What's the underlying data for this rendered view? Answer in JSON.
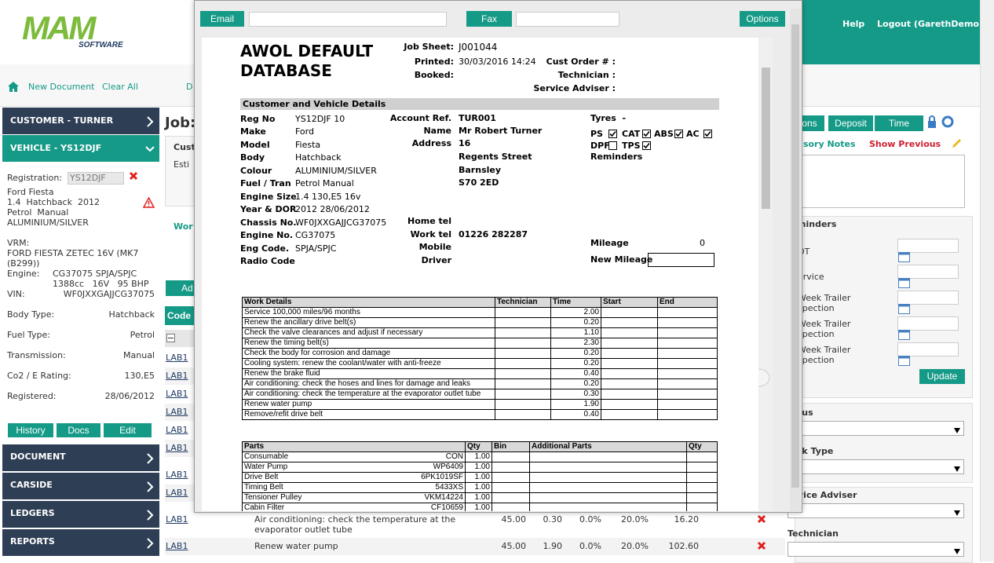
{
  "header": {
    "logo": "MAM",
    "logo_sub": "SOFTWARE",
    "nav": [
      "Help",
      "Logout (GarethDemo)"
    ]
  },
  "toolbar": {
    "links": [
      "New Document",
      "Clear All",
      "D"
    ]
  },
  "sidebar": {
    "customer": "CUSTOMER - TURNER",
    "vehicle": "VEHICLE - YS12DJF",
    "registration": {
      "label": "Registration:",
      "value": "YS12DJF"
    },
    "description": [
      "Ford Fiesta",
      "1.4  Hatchback  2012",
      "Petrol  Manual",
      "ALUMINIUM/SILVER"
    ],
    "vrm": {
      "label": "VRM:",
      "lines": [
        "FORD FIESTA ZETEC 16V (MK7",
        "(B299))"
      ]
    },
    "engine": {
      "label": "Engine:",
      "lines": [
        "CG37075 SPJA/SPJC",
        "1388cc   16V   95 BHP"
      ]
    },
    "vin": {
      "label": "VIN:",
      "value": "WF0JXXGAJJCG37075"
    },
    "details": [
      {
        "label": "Body Type:",
        "value": "Hatchback"
      },
      {
        "label": "Fuel Type:",
        "value": "Petrol"
      },
      {
        "label": "Transmission:",
        "value": "Manual"
      },
      {
        "label": "Co2 / E Rating:",
        "value": "130,E5"
      },
      {
        "label": "Registered:",
        "value": "28/06/2012"
      }
    ],
    "buttons": [
      "History",
      "Docs",
      "Edit"
    ],
    "menu": [
      "DOCUMENT",
      "CARSIDE",
      "LEDGERS",
      "REPORTS"
    ]
  },
  "main": {
    "job": "Job:",
    "fragments": [
      "Cust",
      "Esti",
      "Wor"
    ],
    "add_button": "Ad",
    "code_header": "Code",
    "links": [
      "LAB1",
      "LAB1",
      "LAB1",
      "LAB1",
      "LAB1",
      "LAB1",
      "LAB1",
      "LAB1"
    ],
    "rows": [
      {
        "code": "LAB1",
        "description": "Air conditioning: check the temperature at the evaporator outlet tube",
        "cells": [
          "45.00",
          "0.30",
          "0.0%",
          "20.0%",
          "16.20"
        ]
      },
      {
        "code": "LAB1",
        "description": "Renew water pump",
        "cells": [
          "45.00",
          "1.90",
          "0.0%",
          "20.0%",
          "102.60"
        ]
      }
    ]
  },
  "right_panel": {
    "tabs": [
      "ons",
      "Deposit",
      "Time"
    ],
    "notes_label": "visory Notes",
    "show_previous": "Show Previous",
    "reminders": {
      "title": "minders",
      "items": [
        [
          "OT"
        ],
        [
          "ervice"
        ],
        [
          "Week Trailer",
          "spection"
        ],
        [
          "Week Trailer",
          "spection"
        ],
        [
          "Week Trailer",
          "spection"
        ]
      ]
    },
    "update": "Update",
    "fields": [
      "tus",
      "rk Type",
      "vice Adviser",
      "Technician"
    ]
  },
  "popup": {
    "buttons": [
      "Email",
      "Fax",
      "Options"
    ],
    "document": {
      "title": [
        "AWOL DEFAULT",
        "DATABASE"
      ],
      "job_sheet": {
        "label": "Job Sheet:",
        "value": "J001044"
      },
      "printed": {
        "label": "Printed:",
        "value": "30/03/2016 14:24"
      },
      "booked": {
        "label": "Booked:"
      },
      "right_labels": [
        "Cust Order # :",
        "Technician :",
        "Service Adviser :"
      ],
      "section": "Customer and Vehicle Details",
      "vehicle": [
        {
          "label": "Reg No",
          "value": "YS12DJF 10"
        },
        {
          "label": "Make",
          "value": "Ford"
        },
        {
          "label": "Model",
          "value": "Fiesta"
        },
        {
          "label": "Body",
          "value": "Hatchback"
        },
        {
          "label": "Colour",
          "value": "ALUMINIUM/SILVER"
        },
        {
          "label": "Fuel / Tran",
          "value": "Petrol Manual"
        },
        {
          "label": "Engine Size",
          "value": "1.4 130,E5 16v"
        },
        {
          "label": "Year & DOR",
          "value": "2012 28/06/2012"
        },
        {
          "label": "Chassis No.",
          "value": "WF0JXXGAJJCG37075"
        },
        {
          "label": "Engine No.",
          "value": "CG37075"
        },
        {
          "label": "Eng Code.",
          "value": "SPJA/SPJC"
        },
        {
          "label": "Radio Code"
        }
      ],
      "customer": [
        {
          "label": "Account Ref.",
          "value": "TUR001"
        },
        {
          "label": "Name",
          "value": "Mr Robert Turner"
        },
        {
          "label": "Address",
          "value": "16"
        }
      ],
      "address_lines": [
        "Regents Street",
        "Barnsley",
        "S70 2ED"
      ],
      "contact": [
        {
          "label": "Home tel"
        },
        {
          "label": "Work tel",
          "value": "01226 282287"
        },
        {
          "label": "Mobile"
        },
        {
          "label": "Driver"
        }
      ],
      "tyres": "Tyres  -",
      "checks": [
        {
          "label": "PS",
          "checked": true
        },
        {
          "label": "CAT",
          "checked": true
        },
        {
          "label": "ABS",
          "checked": true
        },
        {
          "label": "AC",
          "checked": true
        },
        {
          "label": "DPF",
          "checked": false
        },
        {
          "label": "TPS",
          "checked": true
        }
      ],
      "reminders": "Reminders",
      "mileage": {
        "label": "Mileage",
        "value": "0"
      },
      "new_mileage": "New Mileage",
      "work": {
        "headers": [
          "Work Details",
          "Technician",
          "Time",
          "Start",
          "End"
        ],
        "rows": [
          [
            "Service 100,000 miles/96 months",
            "2.00"
          ],
          [
            "Renew the ancillary drive belt(s)",
            "0.20"
          ],
          [
            "Check the valve clearances and adjust if necessary",
            "1.10"
          ],
          [
            "Renew the timing belt(s)",
            "2.30"
          ],
          [
            "Check the body for corrosion and damage",
            "0.20"
          ],
          [
            "Cooling system: renew the coolant/water with anti-freeze",
            "0.20"
          ],
          [
            "Renew the brake fluid",
            "0.40"
          ],
          [
            "Air conditioning: check the hoses and lines for damage and leaks",
            "0.20"
          ],
          [
            "Air conditioning: check the temperature at the evaporator outlet tube",
            "0.30"
          ],
          [
            "Renew water pump",
            "1.90"
          ],
          [
            "Remove/refit drive belt",
            "0.40"
          ]
        ]
      },
      "parts": {
        "headers": [
          "Parts",
          "Qty",
          "Bin",
          "Additional Parts",
          "Qty"
        ],
        "rows": [
          [
            "Consumable",
            "CON",
            "1.00"
          ],
          [
            "Water Pump",
            "WP6409",
            "1.00"
          ],
          [
            "Drive Belt",
            "6PK1019SF",
            "1.00"
          ],
          [
            "Timing Belt",
            "5433XS",
            "1.00"
          ],
          [
            "Tensioner Pulley",
            "VKM14224",
            "1.00"
          ],
          [
            "Cabin Filter",
            "CF10659",
            "1.00"
          ]
        ]
      }
    }
  }
}
